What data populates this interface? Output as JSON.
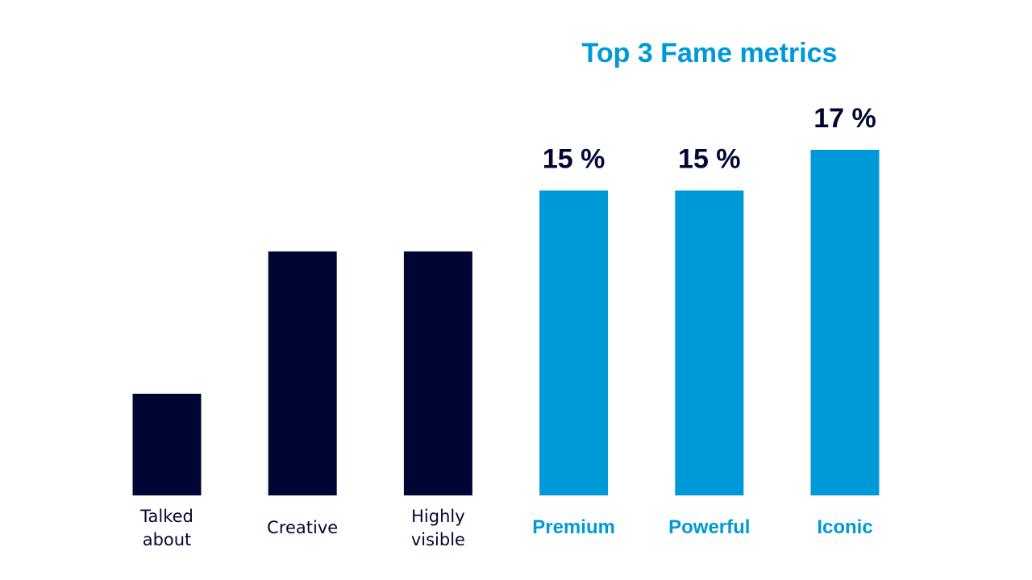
{
  "chart_data": {
    "type": "bar",
    "title": "Top 3 Fame metrics",
    "xlabel": "",
    "ylabel": "",
    "ylim": [
      0,
      17
    ],
    "grid": false,
    "legend": "none",
    "categories": [
      [
        "Talked",
        "about"
      ],
      [
        "Creative"
      ],
      [
        "Highly",
        "visible"
      ],
      [
        "Premium"
      ],
      [
        "Powerful"
      ],
      [
        "Iconic"
      ]
    ],
    "values": [
      5,
      12,
      12,
      15,
      15,
      17
    ],
    "data_labels": [
      "",
      "",
      "",
      "15 %",
      "15 %",
      "17 %"
    ],
    "highlighted": [
      false,
      false,
      false,
      true,
      true,
      true
    ]
  },
  "colors": {
    "base": "#000633",
    "highlight": "#0099d8",
    "value_text": "#000633",
    "background": "#ffffff"
  }
}
